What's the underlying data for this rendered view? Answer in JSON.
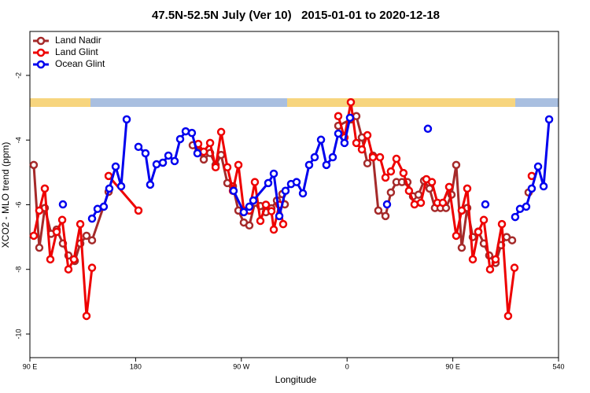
{
  "chart_data": {
    "type": "line",
    "title": "47.5N-52.5N July (Ver 10)   2015-01-01 to 2020-12-18",
    "x_label": "Longitude",
    "y_label": "XCO2 - MLO trend (ppm)",
    "xlim": [
      90,
      540
    ],
    "ylim": [
      -10.73,
      -0.64
    ],
    "xticks": [
      {
        "value": 90,
        "label": "90 E"
      },
      180,
      {
        "value": 270,
        "label": "90 W"
      },
      {
        "value": 360,
        "label": "0"
      },
      {
        "value": 450,
        "label": "90 E"
      },
      540
    ],
    "yticks": [
      -10,
      -8,
      -6,
      -4,
      -2
    ],
    "legend": "top-left",
    "series": [
      {
        "name": "Land Nadir",
        "color": "#a52a2a",
        "x": [
          93.3,
          98,
          102.7,
          108.1,
          112.8,
          118.1,
          122.8,
          128.2,
          132.9,
          138.2,
          142.9,
          157,
          null,
          228.6,
          233.3,
          238,
          243.4,
          248.1,
          252.8,
          258.1,
          262.8,
          267.5,
          272.1,
          276.8,
          281.5,
          286.2,
          290.9,
          295.6,
          300.3,
          304.9,
          307,
          null,
          352.5,
          363.2,
          367.9,
          372.6,
          377.3,
          382,
          386.6,
          392.7,
          397.3,
          402,
          406.7,
          411.4,
          416.1,
          420.8,
          425.5,
          430.2,
          434.8,
          439.5,
          444.2,
          448.9,
          452.9,
          457.6,
          462.3,
          467,
          471.7,
          476.4,
          481,
          486.4,
          491.1,
          495.8,
          500.5,
          null,
          514.5
        ],
        "values": [
          -4.77,
          -7.33,
          -6.1,
          -6.9,
          -6.77,
          -7.2,
          -7.57,
          -7.74,
          -7.2,
          -6.96,
          -7.1,
          -5.6,
          null,
          -4.16,
          -4.36,
          -4.6,
          -4.4,
          -4.77,
          -4.46,
          -5.33,
          -5.43,
          -6.18,
          -6.55,
          -6.64,
          -5.94,
          -6.04,
          -6.23,
          -6.11,
          -5.87,
          -5.67,
          -5.99,
          null,
          -3.56,
          -3.36,
          -3.26,
          -3.92,
          -4.72,
          -4.48,
          -6.18,
          -6.35,
          -5.62,
          -5.3,
          -5.3,
          -5.3,
          -5.74,
          -5.69,
          -5.26,
          -5.5,
          -6.1,
          -6.1,
          -6.1,
          -5.69,
          -4.77,
          -7.33,
          -6.1,
          -7.0,
          -6.83,
          -7.2,
          -7.57,
          -7.8,
          -7.25,
          -7.0,
          -7.1,
          null,
          -5.62
        ]
      },
      {
        "name": "Land Glint",
        "color": "#ee0000",
        "x": [
          93.3,
          98,
          102.7,
          107.4,
          112.8,
          117.5,
          122.8,
          127.5,
          132.9,
          138.2,
          142.9,
          null,
          157,
          182.4,
          null,
          233.3,
          238,
          243.4,
          248.1,
          252.8,
          258.1,
          262.8,
          267.5,
          272.1,
          276.8,
          281.5,
          286.2,
          290.9,
          295.6,
          297.6,
          302.3,
          305.6,
          null,
          352.5,
          357.8,
          363.2,
          367.9,
          372.6,
          377.3,
          382,
          388,
          392.7,
          397.3,
          402,
          408,
          412.7,
          417.4,
          422.8,
          427.5,
          432.2,
          436.9,
          441.5,
          446.9,
          452.9,
          457.6,
          462.3,
          467,
          471.7,
          476.4,
          481.7,
          486.4,
          491.8,
          497.1,
          502.5,
          null,
          517.2
        ],
        "values": [
          -6.96,
          -6.18,
          -5.5,
          -7.69,
          -6.84,
          -6.47,
          -8.0,
          -7.69,
          -6.6,
          -9.44,
          -7.95,
          null,
          -5.11,
          -6.18,
          null,
          -4.12,
          -4.36,
          -4.09,
          -4.84,
          -3.75,
          -4.84,
          -5.57,
          -4.77,
          -6.18,
          -6.18,
          -5.3,
          -6.5,
          -6.0,
          -6.2,
          -6.77,
          -6.0,
          -6.6,
          null,
          -3.26,
          -3.92,
          -2.83,
          -4.09,
          -4.29,
          -3.85,
          -4.53,
          -4.53,
          -5.16,
          -4.97,
          -4.58,
          -5.02,
          -5.57,
          -5.99,
          -5.94,
          -5.21,
          -5.3,
          -5.94,
          -5.94,
          -5.45,
          -6.96,
          -6.18,
          -5.5,
          -7.69,
          -6.84,
          -6.47,
          -8.0,
          -7.69,
          -6.6,
          -9.44,
          -7.95,
          null,
          -5.11
        ]
      },
      {
        "name": "Ocean Glint",
        "color": "#0000ee",
        "x": [
          118.1,
          null,
          142.9,
          147.6,
          152.9,
          157.6,
          163,
          167.7,
          172.4,
          null,
          182.4,
          188.4,
          192.4,
          197.8,
          203.2,
          207.9,
          213.2,
          217.9,
          222.6,
          227.9,
          232.6,
          null,
          263.4,
          272.1,
          276.8,
          280.2,
          292.9,
          297.6,
          302.3,
          307.6,
          312.3,
          317,
          322.4,
          327.7,
          332.4,
          337.8,
          342.4,
          347.8,
          352.5,
          357.8,
          362.5,
          null,
          394,
          null,
          428.8,
          null,
          477.7,
          null,
          503.1,
          507.2,
          512.5,
          517.2,
          522.6,
          527.3,
          532
        ],
        "values": [
          -5.99,
          null,
          -6.43,
          -6.13,
          -6.06,
          -5.5,
          -4.82,
          -5.43,
          -3.36,
          null,
          -4.21,
          -4.41,
          -5.38,
          -4.75,
          -4.7,
          -4.48,
          -4.65,
          -3.97,
          -3.73,
          -3.78,
          -4.41,
          null,
          -5.57,
          -6.23,
          -6.06,
          -5.87,
          -5.33,
          -5.04,
          -6.35,
          -5.57,
          -5.36,
          -5.3,
          -5.65,
          -4.77,
          -4.53,
          -3.99,
          -4.77,
          -4.53,
          -3.8,
          -4.09,
          -3.31,
          null,
          -5.99,
          null,
          -3.65,
          null,
          -5.99,
          null,
          -6.38,
          -6.13,
          -6.06,
          -5.5,
          -4.82,
          -5.43,
          -3.36
        ]
      }
    ]
  }
}
